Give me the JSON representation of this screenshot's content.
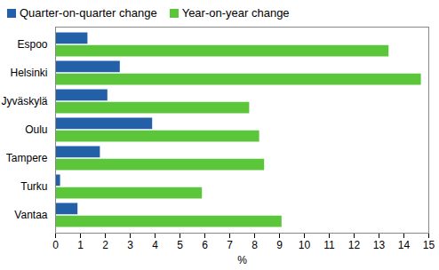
{
  "chart_data": {
    "type": "bar",
    "orientation": "horizontal",
    "legend": "top",
    "categories": [
      "Espoo",
      "Helsinki",
      "Jyväskylä",
      "Oulu",
      "Tampere",
      "Turku",
      "Vantaa"
    ],
    "series": [
      {
        "name": "Quarter-on-quarter change",
        "color": "#2460a7",
        "values": [
          1.3,
          2.6,
          2.1,
          3.9,
          1.8,
          0.2,
          0.9
        ]
      },
      {
        "name": "Year-on-year change",
        "color": "#5cc63a",
        "values": [
          13.4,
          14.7,
          7.8,
          8.2,
          8.4,
          5.9,
          9.1
        ]
      }
    ],
    "xlabel": "%",
    "xlim": [
      0,
      15
    ],
    "xticks": [
      0,
      1,
      2,
      3,
      4,
      5,
      6,
      7,
      8,
      9,
      10,
      11,
      12,
      13,
      14,
      15
    ],
    "grid": false
  }
}
